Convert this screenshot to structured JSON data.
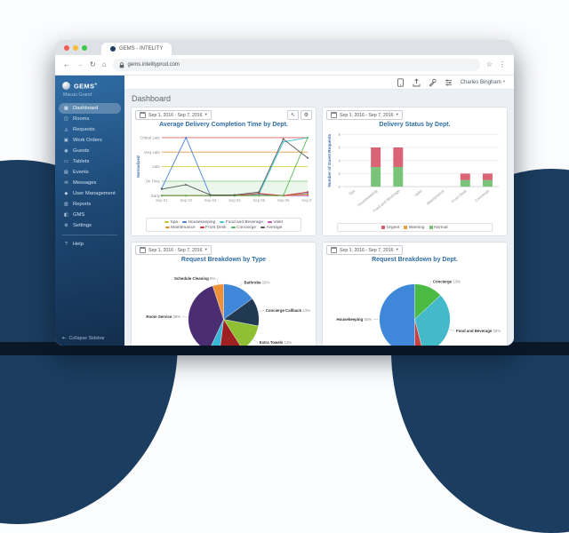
{
  "browser": {
    "tab_title": "GEMS - INTELITY",
    "url": "gems.intelityprod.com"
  },
  "icons": {
    "back": "←",
    "forward": "→",
    "reload": "↻",
    "home": "⌂",
    "star": "☆",
    "kebab": "⋮",
    "chevron_down": "▾",
    "collapse": "⇤",
    "pointer": "↖",
    "gear": "⚙"
  },
  "header": {
    "user": "Charles Bingham"
  },
  "sidebar": {
    "logo": "GEMS",
    "logo_suffix": "®",
    "property": "Macau Grand",
    "items": [
      {
        "label": "Dashboard",
        "icon": "dashboard-icon",
        "glyph": "▦",
        "active": true
      },
      {
        "label": "Rooms",
        "icon": "rooms-icon",
        "glyph": "◫",
        "active": false
      },
      {
        "label": "Requests",
        "icon": "requests-icon",
        "glyph": "◬",
        "active": false
      },
      {
        "label": "Work Orders",
        "icon": "work-orders-icon",
        "glyph": "▣",
        "active": false
      },
      {
        "label": "Guests",
        "icon": "guests-icon",
        "glyph": "◉",
        "active": false
      },
      {
        "label": "Tablets",
        "icon": "tablets-icon",
        "glyph": "▭",
        "active": false
      },
      {
        "label": "Events",
        "icon": "events-icon",
        "glyph": "▤",
        "active": false
      },
      {
        "label": "Messages",
        "icon": "messages-icon",
        "glyph": "✉",
        "active": false
      },
      {
        "label": "User Management",
        "icon": "user-management-icon",
        "glyph": "◆",
        "active": false
      },
      {
        "label": "Reports",
        "icon": "reports-icon",
        "glyph": "▥",
        "active": false
      },
      {
        "label": "GMS",
        "icon": "gms-icon",
        "glyph": "◧",
        "active": false
      },
      {
        "label": "Settings",
        "icon": "settings-icon",
        "glyph": "⚙",
        "active": false
      }
    ],
    "help": {
      "label": "Help",
      "icon": "help-icon",
      "glyph": "?",
      "active": false
    },
    "collapse_label": "Collapse Sidebar"
  },
  "page": {
    "title": "Dashboard"
  },
  "chart_data": [
    {
      "type": "line",
      "title": "Average Delivery Completion Time by Dept.",
      "date_range": "Sep 1, 2016 - Sep 7, 2016",
      "x": [
        "Sep 01",
        "Sep 02",
        "Sep 03",
        "Sep 04",
        "Sep 05",
        "Sep 06",
        "Sep 07"
      ],
      "ylabel": "Normalized",
      "ylim": [
        0,
        4
      ],
      "ytick_labels": [
        "Early",
        "On Time",
        "Late",
        "Very Late",
        "Critical Late"
      ],
      "ytick_colors": [
        "#c9c9c9",
        "#8fd08f",
        "#ddd23e",
        "#e79b4b",
        "#e05f5f"
      ],
      "band_color": "#ecf7ec",
      "series": [
        {
          "name": "Spa",
          "color": "#c9c32a",
          "values": [
            0,
            0,
            0,
            0,
            0,
            0,
            0
          ]
        },
        {
          "name": "Housekeeping",
          "color": "#4b82d8",
          "values": [
            0.5,
            4,
            0,
            0,
            0.1,
            0,
            0.15
          ]
        },
        {
          "name": "Food and Beverage",
          "color": "#3ec6d8",
          "values": [
            0,
            0,
            0,
            0,
            0.1,
            3.7,
            4
          ]
        },
        {
          "name": "Valet",
          "color": "#c44fc4",
          "values": [
            0,
            0,
            0,
            0,
            0,
            0,
            0
          ]
        },
        {
          "name": "Maintenance",
          "color": "#e2902e",
          "values": [
            0,
            0,
            0,
            0,
            0,
            0,
            0.1
          ]
        },
        {
          "name": "Front Desk",
          "color": "#cc3333",
          "values": [
            0,
            0,
            0,
            0,
            0.15,
            0,
            0.25
          ]
        },
        {
          "name": "Concierge",
          "color": "#54b954",
          "values": [
            0,
            0,
            0,
            0,
            0,
            0,
            4
          ]
        },
        {
          "name": "Average",
          "color": "#555555",
          "values": [
            0.45,
            0.75,
            0.05,
            0.05,
            0.25,
            3.9,
            2.6
          ]
        }
      ],
      "legend_position": "bottom"
    },
    {
      "type": "bar",
      "stacked": true,
      "title": "Delivery Status by Dept.",
      "date_range": "Sep 1, 2016 - Sep 7, 2016",
      "categories": [
        "Spa",
        "Housekeeping",
        "Food and Beverage",
        "Valet",
        "Maintenance",
        "Front Desk",
        "Concierge"
      ],
      "ylabel": "Number of Guest Requests",
      "ylim": [
        0,
        8
      ],
      "yticks": [
        0,
        2,
        4,
        6,
        8
      ],
      "series": [
        {
          "name": "Normal",
          "color": "#6fbf6f",
          "values": [
            0,
            3,
            3,
            0,
            0,
            1,
            1
          ]
        },
        {
          "name": "Warning",
          "color": "#ef9b3c",
          "values": [
            0,
            0,
            0,
            0,
            0,
            0,
            0
          ]
        },
        {
          "name": "Urgent",
          "color": "#d8566a",
          "values": [
            0,
            3,
            3,
            0,
            0,
            1,
            1
          ]
        }
      ],
      "legend_order": [
        "Urgent",
        "Warning",
        "Normal"
      ],
      "legend_position": "bottom"
    },
    {
      "type": "pie",
      "title": "Request Breakdown by Type",
      "date_range": "Sep 1, 2016 - Sep 7, 2016",
      "slices": [
        {
          "label": "Bathrobe",
          "pct": 15,
          "color": "#3f87d9",
          "labeled": true
        },
        {
          "label": "Concierge Callback",
          "pct": 13,
          "color": "#213a52",
          "labeled": true
        },
        {
          "label": "Extra Towels",
          "pct": 13,
          "color": "#8fbf33",
          "labeled": true
        },
        {
          "label": "",
          "pct": 11,
          "color": "#9e2020",
          "labeled": false
        },
        {
          "label": "",
          "pct": 5,
          "color": "#39b7d6",
          "labeled": false
        },
        {
          "label": "Room Service",
          "pct": 38,
          "color": "#4a2d73",
          "labeled": true
        },
        {
          "label": "Schedule Cleaning",
          "pct": 5,
          "color": "#ef913b",
          "labeled": true
        }
      ]
    },
    {
      "type": "pie",
      "title": "Request Breakdown by Dept.",
      "date_range": "Sep 1, 2016 - Sep 7, 2016",
      "slices": [
        {
          "label": "Concierge",
          "pct": 13,
          "color": "#4cbb45",
          "labeled": true
        },
        {
          "label": "Food and Beverage",
          "pct": 33,
          "color": "#43b9c9",
          "labeled": true
        },
        {
          "label": "",
          "pct": 4,
          "color": "#c84040",
          "labeled": false
        },
        {
          "label": "Housekeeping",
          "pct": 50,
          "color": "#3f87d9",
          "labeled": true
        }
      ]
    }
  ]
}
